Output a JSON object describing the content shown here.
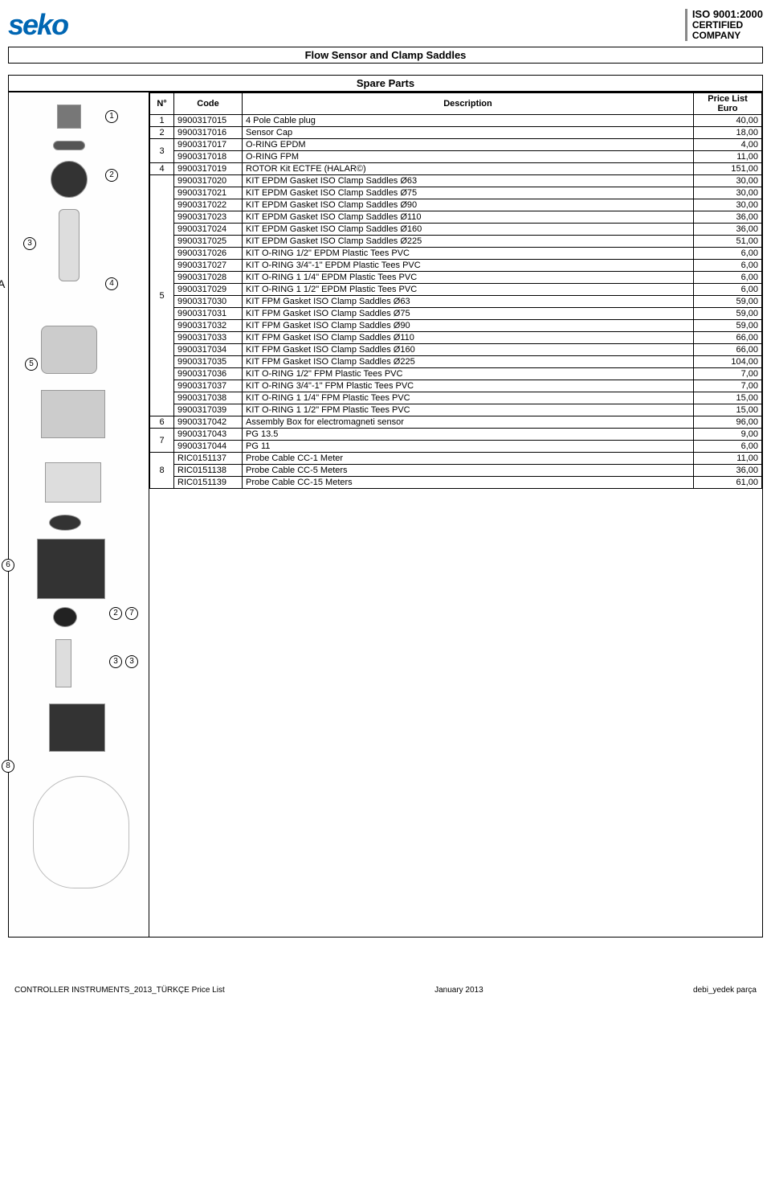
{
  "logo_text": "seko",
  "cert": {
    "line1": "ISO 9001:2000",
    "line2": "CERTIFIED",
    "line3": "COMPANY"
  },
  "title": "Flow Sensor and Clamp Saddles",
  "subtitle": "Spare Parts",
  "table": {
    "headers": {
      "n": "N°",
      "code": "Code",
      "desc": "Description",
      "price": "Price List Euro"
    },
    "groups": [
      {
        "n": "1",
        "rows": [
          {
            "code": "9900317015",
            "desc": "4 Pole Cable plug",
            "price": "40,00"
          }
        ]
      },
      {
        "n": "2",
        "rows": [
          {
            "code": "9900317016",
            "desc": "Sensor Cap",
            "price": "18,00"
          }
        ]
      },
      {
        "n": "3",
        "rows": [
          {
            "code": "9900317017",
            "desc": "O-RING EPDM",
            "price": "4,00"
          },
          {
            "code": "9900317018",
            "desc": "O-RING FPM",
            "price": "11,00"
          }
        ]
      },
      {
        "n": "4",
        "rows": [
          {
            "code": "9900317019",
            "desc": "ROTOR Kit ECTFE (HALAR©)",
            "price": "151,00"
          }
        ]
      },
      {
        "n": "5",
        "rows": [
          {
            "code": "9900317020",
            "desc": "KIT EPDM Gasket ISO Clamp Saddles Ø63",
            "price": "30,00"
          },
          {
            "code": "9900317021",
            "desc": "KIT EPDM Gasket ISO Clamp Saddles Ø75",
            "price": "30,00"
          },
          {
            "code": "9900317022",
            "desc": "KIT EPDM Gasket ISO Clamp Saddles Ø90",
            "price": "30,00"
          },
          {
            "code": "9900317023",
            "desc": "KIT EPDM Gasket ISO Clamp Saddles Ø110",
            "price": "36,00"
          },
          {
            "code": "9900317024",
            "desc": "KIT EPDM Gasket ISO Clamp Saddles Ø160",
            "price": "36,00"
          },
          {
            "code": "9900317025",
            "desc": "KIT EPDM Gasket ISO Clamp Saddles Ø225",
            "price": "51,00"
          },
          {
            "code": "9900317026",
            "desc": "KIT O-RING 1/2\" EPDM Plastic Tees PVC",
            "price": "6,00"
          },
          {
            "code": "9900317027",
            "desc": "KIT O-RING 3/4\"-1\"  EPDM Plastic Tees PVC",
            "price": "6,00"
          },
          {
            "code": "9900317028",
            "desc": "KIT O-RING 1 1/4\"  EPDM Plastic Tees PVC",
            "price": "6,00"
          },
          {
            "code": "9900317029",
            "desc": "KIT O-RING 1 1/2\"  EPDM Plastic Tees PVC",
            "price": "6,00"
          },
          {
            "code": "9900317030",
            "desc": "KIT FPM Gasket ISO Clamp Saddles Ø63",
            "price": "59,00"
          },
          {
            "code": "9900317031",
            "desc": "KIT FPM Gasket ISO Clamp Saddles Ø75",
            "price": "59,00"
          },
          {
            "code": "9900317032",
            "desc": "KIT FPM Gasket ISO Clamp Saddles Ø90",
            "price": "59,00"
          },
          {
            "code": "9900317033",
            "desc": "KIT FPM Gasket ISO Clamp Saddles Ø110",
            "price": "66,00"
          },
          {
            "code": "9900317034",
            "desc": "KIT FPM Gasket ISO Clamp Saddles Ø160",
            "price": "66,00"
          },
          {
            "code": "9900317035",
            "desc": "KIT FPM Gasket ISO Clamp Saddles Ø225",
            "price": "104,00"
          },
          {
            "code": "9900317036",
            "desc": "KIT O-RING 1/2\" FPM Plastic Tees PVC",
            "price": "7,00"
          },
          {
            "code": "9900317037",
            "desc": "KIT O-RING 3/4\"-1\"  FPM Plastic Tees PVC",
            "price": "7,00"
          },
          {
            "code": "9900317038",
            "desc": "KIT O-RING 1 1/4\"  FPM Plastic Tees PVC",
            "price": "15,00"
          },
          {
            "code": "9900317039",
            "desc": "KIT O-RING 1 1/2\"  FPM Plastic Tees PVC",
            "price": "15,00"
          }
        ]
      },
      {
        "n": "6",
        "rows": [
          {
            "code": "9900317042",
            "desc": "Assembly Box for electromagneti sensor",
            "price": "96,00"
          }
        ]
      },
      {
        "n": "7",
        "rows": [
          {
            "code": "9900317043",
            "desc": "PG 13.5",
            "price": "9,00"
          },
          {
            "code": "9900317044",
            "desc": "PG 11",
            "price": "6,00"
          }
        ]
      },
      {
        "n": "8",
        "rows": [
          {
            "code": "RIC0151137",
            "desc": "Probe Cable CC-1 Meter",
            "price": "11,00"
          },
          {
            "code": "RIC0151138",
            "desc": "Probe Cable CC-5 Meters",
            "price": "36,00"
          },
          {
            "code": "RIC0151139",
            "desc": "Probe Cable CC-15 Meters",
            "price": "61,00"
          }
        ]
      }
    ]
  },
  "diagram": {
    "label_a": "A",
    "callouts_outer": [
      "6",
      "8"
    ],
    "callouts_inner": [
      "1",
      "2",
      "3",
      "4",
      "5",
      "2",
      "7",
      "3",
      "3"
    ]
  },
  "footer": {
    "left": "CONTROLLER INSTRUMENTS_2013_TÜRKÇE Price List",
    "center": "January 2013",
    "right": "debi_yedek parça"
  }
}
